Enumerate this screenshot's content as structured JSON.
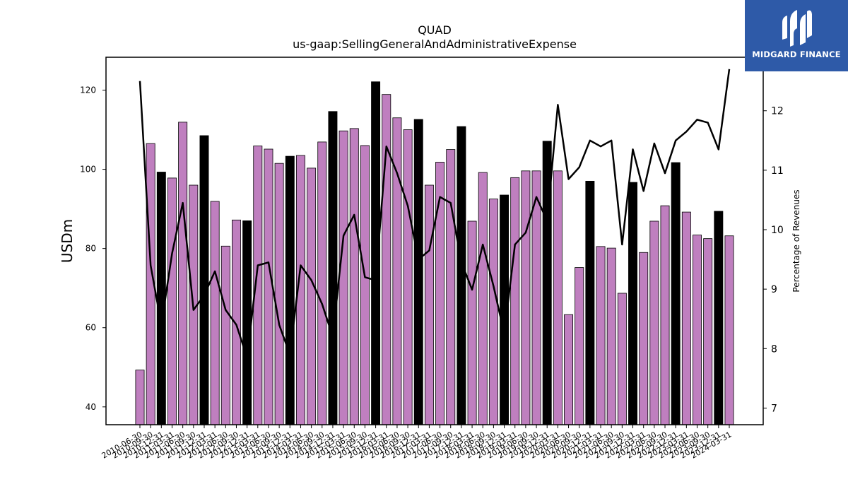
{
  "chart_data": {
    "type": "bar",
    "title": "QUAD",
    "subtitle": "us-gaap:SellingGeneralAndAdministrativeExpense",
    "ylabel": "USDm",
    "y2label": "Percentage of Revenues",
    "ylim": [
      35.5,
      128.3
    ],
    "y2lim": [
      6.72,
      12.9
    ],
    "yticks": [
      40,
      60,
      80,
      100,
      120
    ],
    "y2ticks": [
      7,
      8,
      9,
      10,
      11,
      12
    ],
    "categories": [
      "2010-06-30",
      "2010-09-30",
      "2010-12-31",
      "2011-03-31",
      "2011-06-30",
      "2011-09-30",
      "2011-12-31",
      "2012-03-31",
      "2012-06-30",
      "2012-09-30",
      "2012-12-31",
      "2013-03-31",
      "2013-06-30",
      "2013-09-30",
      "2013-12-31",
      "2014-03-31",
      "2014-06-30",
      "2014-09-30",
      "2014-12-31",
      "2015-03-31",
      "2015-06-30",
      "2015-09-30",
      "2015-12-31",
      "2016-03-31",
      "2016-06-30",
      "2016-09-30",
      "2016-12-31",
      "2017-03-31",
      "2017-06-30",
      "2017-09-30",
      "2017-12-31",
      "2018-03-31",
      "2018-06-30",
      "2018-09-30",
      "2018-12-31",
      "2019-03-31",
      "2019-06-30",
      "2019-09-30",
      "2019-12-31",
      "2020-03-31",
      "2020-06-30",
      "2020-09-30",
      "2020-12-31",
      "2021-03-31",
      "2021-06-30",
      "2021-09-30",
      "2021-12-31",
      "2022-03-31",
      "2022-06-30",
      "2022-09-30",
      "2022-12-31",
      "2023-03-31",
      "2023-06-30",
      "2023-09-30",
      "2023-12-31",
      "2024-03-31"
    ],
    "series": [
      {
        "type": "bar",
        "axis": "left",
        "values": [
          49.3,
          106.5,
          99.3,
          97.8,
          111.9,
          96.0,
          108.5,
          91.9,
          80.6,
          87.2,
          87.0,
          105.9,
          105.1,
          101.5,
          103.3,
          103.5,
          100.3,
          106.9,
          114.6,
          109.7,
          110.3,
          106.0,
          122.1,
          118.9,
          113.0,
          110.0,
          112.6,
          96.0,
          101.8,
          105.0,
          110.8,
          86.9,
          99.2,
          92.5,
          93.5,
          97.9,
          99.6,
          99.6,
          107.1,
          99.6,
          63.3,
          75.2,
          97.0,
          80.5,
          80.1,
          68.7,
          96.7,
          79.0,
          86.9,
          90.8,
          101.7,
          89.2,
          83.4,
          82.5,
          89.4,
          83.2
        ],
        "colors": [
          "#bf7fbf",
          "#bf7fbf",
          "#000000",
          "#bf7fbf",
          "#bf7fbf",
          "#bf7fbf",
          "#000000",
          "#bf7fbf",
          "#bf7fbf",
          "#bf7fbf",
          "#000000",
          "#bf7fbf",
          "#bf7fbf",
          "#bf7fbf",
          "#000000",
          "#bf7fbf",
          "#bf7fbf",
          "#bf7fbf",
          "#000000",
          "#bf7fbf",
          "#bf7fbf",
          "#bf7fbf",
          "#000000",
          "#bf7fbf",
          "#bf7fbf",
          "#bf7fbf",
          "#000000",
          "#bf7fbf",
          "#bf7fbf",
          "#bf7fbf",
          "#000000",
          "#bf7fbf",
          "#bf7fbf",
          "#bf7fbf",
          "#000000",
          "#bf7fbf",
          "#bf7fbf",
          "#bf7fbf",
          "#000000",
          "#bf7fbf",
          "#bf7fbf",
          "#bf7fbf",
          "#000000",
          "#bf7fbf",
          "#bf7fbf",
          "#bf7fbf",
          "#000000",
          "#bf7fbf",
          "#bf7fbf",
          "#bf7fbf",
          "#000000",
          "#bf7fbf",
          "#bf7fbf",
          "#bf7fbf",
          "#000000",
          "#bf7fbf"
        ]
      },
      {
        "type": "line",
        "axis": "right",
        "color": "#000000",
        "values": [
          12.5,
          9.4,
          8.4,
          9.6,
          10.45,
          8.65,
          8.9,
          9.3,
          8.65,
          8.4,
          7.85,
          9.4,
          9.45,
          8.4,
          7.9,
          9.4,
          9.15,
          8.75,
          8.2,
          9.9,
          10.25,
          9.2,
          9.15,
          11.4,
          10.95,
          10.4,
          9.5,
          9.65,
          10.55,
          10.45,
          9.45,
          8.99,
          9.75,
          9.05,
          8.25,
          9.75,
          9.95,
          10.55,
          10.15,
          12.1,
          10.85,
          11.05,
          11.5,
          11.4,
          11.5,
          9.75,
          11.35,
          10.65,
          11.45,
          10.95,
          11.5,
          11.65,
          11.85,
          11.8,
          11.35,
          12.7
        ]
      }
    ],
    "grid": false,
    "legend": "none"
  },
  "brand": {
    "name": "MIDGARD FINANCE",
    "bg_color": "#2e5aa8",
    "text_color": "#ffffff",
    "icon": "midgard-logo-icon"
  }
}
